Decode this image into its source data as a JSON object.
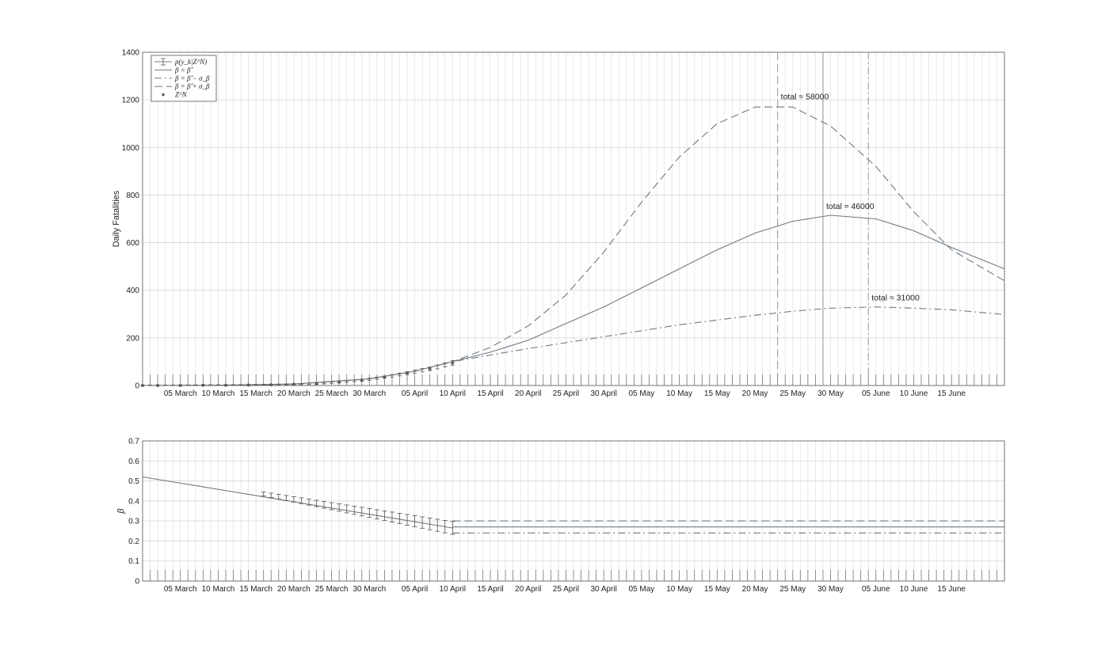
{
  "chart_data": [
    {
      "type": "line",
      "ylabel": "Daily Fatalities",
      "xlabel": "",
      "ylim": [
        0,
        1400
      ],
      "yticks": [
        0,
        200,
        400,
        600,
        800,
        1000,
        1200,
        1400
      ],
      "xlim_dates": [
        "2020-02-29",
        "2020-06-22"
      ],
      "xtick_labels": [
        "05 March",
        "10 March",
        "15 March",
        "20 March",
        "25 March",
        "30 March",
        "05 April",
        "10 April",
        "15 April",
        "20 April",
        "25 April",
        "30 April",
        "05 May",
        "10 May",
        "15 May",
        "20 May",
        "25 May",
        "30 May",
        "05 June",
        "10 June",
        "15 June"
      ],
      "grid": true,
      "legend_position": "top-left",
      "legend": [
        "p(y_k|Z^N)",
        "β = β̂",
        "β = β̂ − σ_β",
        "β = β̂ + σ_β",
        "Z^N"
      ],
      "series": [
        {
          "name": "β = β̂",
          "style": "solid",
          "x": [
            "2020-02-29",
            "2020-03-10",
            "2020-03-20",
            "2020-03-30",
            "2020-04-05",
            "2020-04-10",
            "2020-04-15",
            "2020-04-20",
            "2020-04-25",
            "2020-04-30",
            "2020-05-05",
            "2020-05-10",
            "2020-05-15",
            "2020-05-20",
            "2020-05-25",
            "2020-05-30",
            "2020-06-05",
            "2020-06-10",
            "2020-06-15",
            "2020-06-22"
          ],
          "y": [
            0,
            1,
            6,
            28,
            60,
            100,
            140,
            190,
            260,
            330,
            410,
            490,
            570,
            640,
            690,
            715,
            700,
            650,
            580,
            490
          ]
        },
        {
          "name": "β = β̂ − σ_β",
          "style": "dashdot",
          "x": [
            "2020-02-29",
            "2020-03-10",
            "2020-03-20",
            "2020-03-30",
            "2020-04-05",
            "2020-04-10",
            "2020-04-15",
            "2020-04-20",
            "2020-04-25",
            "2020-04-30",
            "2020-05-05",
            "2020-05-10",
            "2020-05-15",
            "2020-05-20",
            "2020-05-25",
            "2020-05-30",
            "2020-06-05",
            "2020-06-10",
            "2020-06-15",
            "2020-06-22"
          ],
          "y": [
            0,
            1,
            6,
            28,
            60,
            100,
            128,
            155,
            180,
            205,
            230,
            255,
            275,
            295,
            312,
            325,
            330,
            325,
            318,
            298
          ]
        },
        {
          "name": "β = β̂ + σ_β",
          "style": "dashed",
          "x": [
            "2020-02-29",
            "2020-03-10",
            "2020-03-20",
            "2020-03-30",
            "2020-04-05",
            "2020-04-10",
            "2020-04-15",
            "2020-04-20",
            "2020-04-25",
            "2020-04-30",
            "2020-05-05",
            "2020-05-10",
            "2020-05-15",
            "2020-05-20",
            "2020-05-25",
            "2020-05-30",
            "2020-06-05",
            "2020-06-10",
            "2020-06-15",
            "2020-06-22"
          ],
          "y": [
            0,
            1,
            6,
            28,
            60,
            100,
            160,
            250,
            380,
            560,
            770,
            960,
            1100,
            1170,
            1170,
            1090,
            920,
            730,
            570,
            440
          ]
        },
        {
          "name": "Z^N",
          "style": "markers",
          "x": [
            "2020-02-29",
            "2020-03-02",
            "2020-03-05",
            "2020-03-08",
            "2020-03-11",
            "2020-03-14",
            "2020-03-17",
            "2020-03-20",
            "2020-03-23",
            "2020-03-26",
            "2020-03-29",
            "2020-04-01",
            "2020-04-04",
            "2020-04-07",
            "2020-04-10"
          ],
          "y": [
            0,
            0,
            0,
            1,
            1,
            2,
            3,
            5,
            8,
            14,
            22,
            35,
            52,
            70,
            95
          ]
        }
      ],
      "vertical_lines": [
        {
          "x": "2020-05-23",
          "style": "dashed"
        },
        {
          "x": "2020-05-29",
          "style": "solid"
        },
        {
          "x": "2020-06-04",
          "style": "dashdot"
        }
      ],
      "annotations": [
        {
          "text": "total ≈ 58000",
          "x": "2020-05-23",
          "y": 1215
        },
        {
          "text": "total ≈ 46000",
          "x": "2020-05-29",
          "y": 755
        },
        {
          "text": "total ≈ 31000",
          "x": "2020-06-04",
          "y": 370
        }
      ]
    },
    {
      "type": "line",
      "ylabel": "β",
      "xlabel": "",
      "ylim": [
        0,
        0.7
      ],
      "yticks": [
        0,
        0.1,
        0.2,
        0.3,
        0.4,
        0.5,
        0.6,
        0.7
      ],
      "xlim_dates": [
        "2020-02-29",
        "2020-06-22"
      ],
      "xtick_labels": [
        "05 March",
        "10 March",
        "15 March",
        "20 March",
        "25 March",
        "30 March",
        "05 April",
        "10 April",
        "15 April",
        "20 April",
        "25 April",
        "30 April",
        "05 May",
        "10 May",
        "15 May",
        "20 May",
        "25 May",
        "30 May",
        "05 June",
        "10 June",
        "15 June"
      ],
      "grid": true,
      "series": [
        {
          "name": "β = β̂",
          "style": "solid",
          "x": [
            "2020-02-29",
            "2020-04-10",
            "2020-04-10",
            "2020-06-22"
          ],
          "y": [
            0.52,
            0.265,
            0.27,
            0.27
          ]
        },
        {
          "name": "β = β̂ − σ_β",
          "style": "dashdot",
          "x": [
            "2020-04-10",
            "2020-06-22"
          ],
          "y": [
            0.24,
            0.24
          ]
        },
        {
          "name": "β = β̂ + σ_β",
          "style": "dashed",
          "x": [
            "2020-04-10",
            "2020-06-22"
          ],
          "y": [
            0.3,
            0.3
          ]
        }
      ],
      "errorbars": {
        "from": "2020-03-16",
        "to": "2020-04-10",
        "center_start": 0.435,
        "center_end": 0.265,
        "halfwidth_start": 0.01,
        "halfwidth_end": 0.032
      }
    }
  ]
}
